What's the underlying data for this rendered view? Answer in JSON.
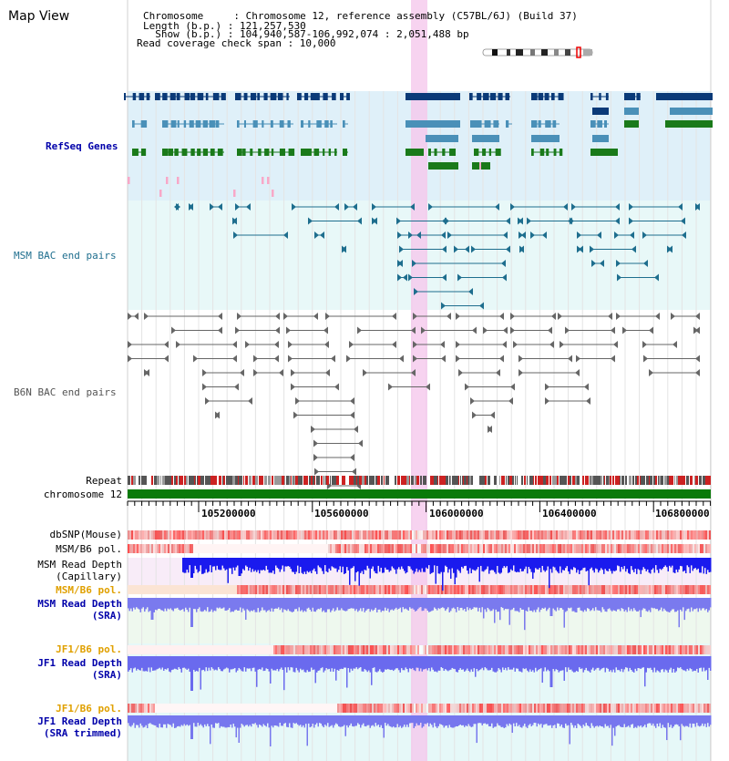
{
  "page": {
    "title": "Map View"
  },
  "info": {
    "chromosome": "Chromosome     : Chromosome 12, reference assembly (C57BL/6J) (Build 37)",
    "length": "Length (b.p.) : 121,257,530",
    "show": "  Show (b.p.) : 104,940,587-106,992,074 : 2,051,488 bp",
    "span": "Read coverage check span : 10,000"
  },
  "tracks": {
    "refseq": "RefSeq Genes",
    "msm_bac": "MSM BAC end pairs",
    "b6n_bac": "B6N BAC end pairs",
    "repeat": "Repeat",
    "chromosome": "chromosome 12",
    "dbsnp": "dbSNP(Mouse)",
    "msm_b6_pol_1": "MSM/B6 pol.",
    "msm_depth_cap_1": "MSM Read Depth",
    "msm_depth_cap_2": "(Capillary)",
    "msm_b6_pol_2": "MSM/B6 pol.",
    "msm_depth_sra_1": "MSM Read Depth",
    "msm_depth_sra_2": "(SRA)",
    "jf1_b6_pol_1": "JF1/B6 pol.",
    "jf1_depth_sra_1": "JF1 Read Depth",
    "jf1_depth_sra_2": "(SRA)",
    "jf1_b6_pol_2": "JF1/B6 pol.",
    "jf1_depth_trim_1": "JF1 Read Depth",
    "jf1_depth_trim_2": "(SRA trimmed)"
  },
  "axis": {
    "ticks": [
      "105200000",
      "105600000",
      "106000000",
      "106400000",
      "106800000"
    ]
  },
  "colors": {
    "refseq_dark": "#0a3a78",
    "refseq_mid": "#4a90b8",
    "refseq_green": "#1a7a1a",
    "msm_bac": "#1e6e8e",
    "b6n_bac": "#666666",
    "label_blue": "#0000aa",
    "label_orange": "#e0a000",
    "highlight": "#f5c8ec",
    "chromosome": "#0a7a0a"
  }
}
